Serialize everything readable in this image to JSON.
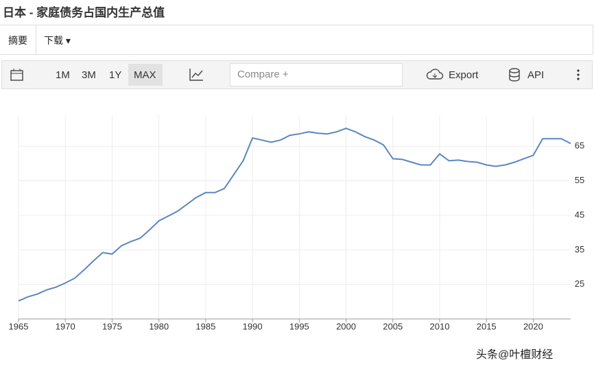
{
  "header": {
    "title": "日本 - 家庭债务占国内生产总值"
  },
  "tabs": [
    "摘要",
    "下载"
  ],
  "toolbar": {
    "ranges": [
      "1M",
      "3M",
      "1Y",
      "MAX"
    ],
    "compare": "Compare +",
    "export": "Export",
    "api": "API"
  },
  "watermark": "头条@叶檀财经",
  "chart_data": {
    "type": "line",
    "color": "#5b86c0",
    "grid": true,
    "x": [
      1965,
      1966,
      1967,
      1968,
      1969,
      1970,
      1971,
      1972,
      1973,
      1974,
      1975,
      1976,
      1977,
      1978,
      1979,
      1980,
      1981,
      1982,
      1983,
      1984,
      1985,
      1986,
      1987,
      1988,
      1989,
      1990,
      1991,
      1992,
      1993,
      1994,
      1995,
      1996,
      1997,
      1998,
      1999,
      2000,
      2001,
      2002,
      2003,
      2004,
      2005,
      2006,
      2007,
      2008,
      2009,
      2010,
      2011,
      2012,
      2013,
      2014,
      2015,
      2016,
      2017,
      2018,
      2019,
      2020,
      2021,
      2022,
      2023,
      2024
    ],
    "values": [
      20.2,
      21.4,
      22.2,
      23.4,
      24.2,
      25.4,
      26.8,
      29.2,
      31.8,
      34.2,
      33.8,
      36.2,
      37.4,
      38.4,
      40.8,
      43.4,
      44.8,
      46.2,
      48.2,
      50.2,
      51.6,
      51.6,
      52.8,
      56.8,
      60.8,
      67.4,
      66.8,
      66.2,
      66.8,
      68.2,
      68.6,
      69.2,
      68.8,
      68.6,
      69.2,
      70.2,
      69.2,
      67.8,
      66.8,
      65.4,
      61.4,
      61.2,
      60.4,
      59.6,
      59.6,
      62.8,
      60.8,
      61,
      60.6,
      60.4,
      59.6,
      59.2,
      59.6,
      60.4,
      61.4,
      62.4,
      67.2,
      67.2,
      67.2,
      65.8
    ],
    "xlim": [
      1965,
      2024
    ],
    "ylim": [
      15,
      74
    ],
    "xticks": [
      1965,
      1970,
      1975,
      1980,
      1985,
      1990,
      1995,
      2000,
      2005,
      2010,
      2015,
      2020
    ],
    "yticks": [
      25,
      35,
      45,
      55,
      65
    ]
  }
}
